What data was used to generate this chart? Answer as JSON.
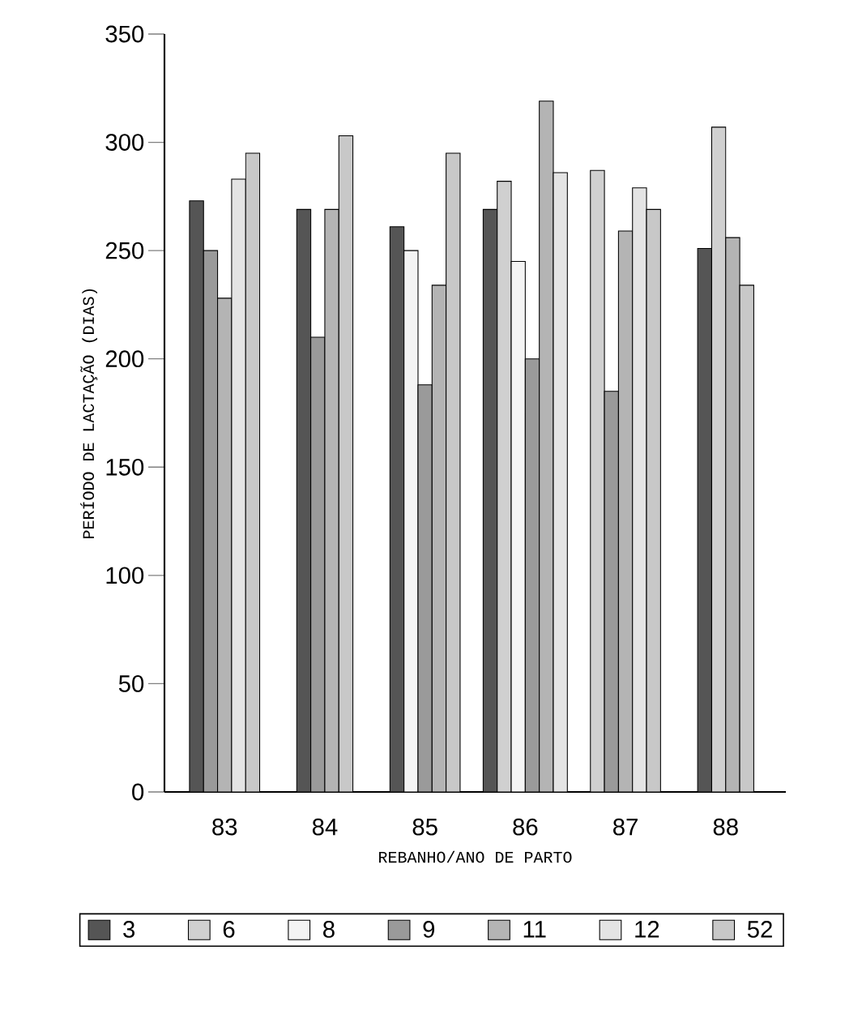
{
  "chart_data": {
    "type": "bar",
    "xlabel": "REBANHO/ANO DE PARTO",
    "ylabel": "PERÍODO DE LACTAÇÃO (DIAS)",
    "categories": [
      "83",
      "84",
      "85",
      "86",
      "87",
      "88"
    ],
    "series": [
      {
        "name": "3",
        "color": "#555555",
        "values": [
          273,
          269,
          261,
          269,
          null,
          251
        ]
      },
      {
        "name": "6",
        "color": "#d0d0d0",
        "values": [
          null,
          null,
          null,
          282,
          287,
          307
        ]
      },
      {
        "name": "8",
        "color": "#f4f4f4",
        "values": [
          null,
          null,
          250,
          245,
          null,
          null
        ]
      },
      {
        "name": "9",
        "color": "#9a9a9a",
        "values": [
          250,
          210,
          188,
          200,
          185,
          null
        ]
      },
      {
        "name": "11",
        "color": "#b4b4b4",
        "values": [
          228,
          269,
          234,
          319,
          259,
          256
        ]
      },
      {
        "name": "12",
        "color": "#e4e4e4",
        "values": [
          283,
          null,
          null,
          286,
          279,
          null
        ]
      },
      {
        "name": "52",
        "color": "#c8c8c8",
        "values": [
          295,
          303,
          295,
          null,
          269,
          234
        ]
      }
    ],
    "ylim": [
      0,
      350
    ],
    "yticks": [
      0,
      50,
      100,
      150,
      200,
      250,
      300,
      350
    ],
    "legend": "bottom"
  }
}
